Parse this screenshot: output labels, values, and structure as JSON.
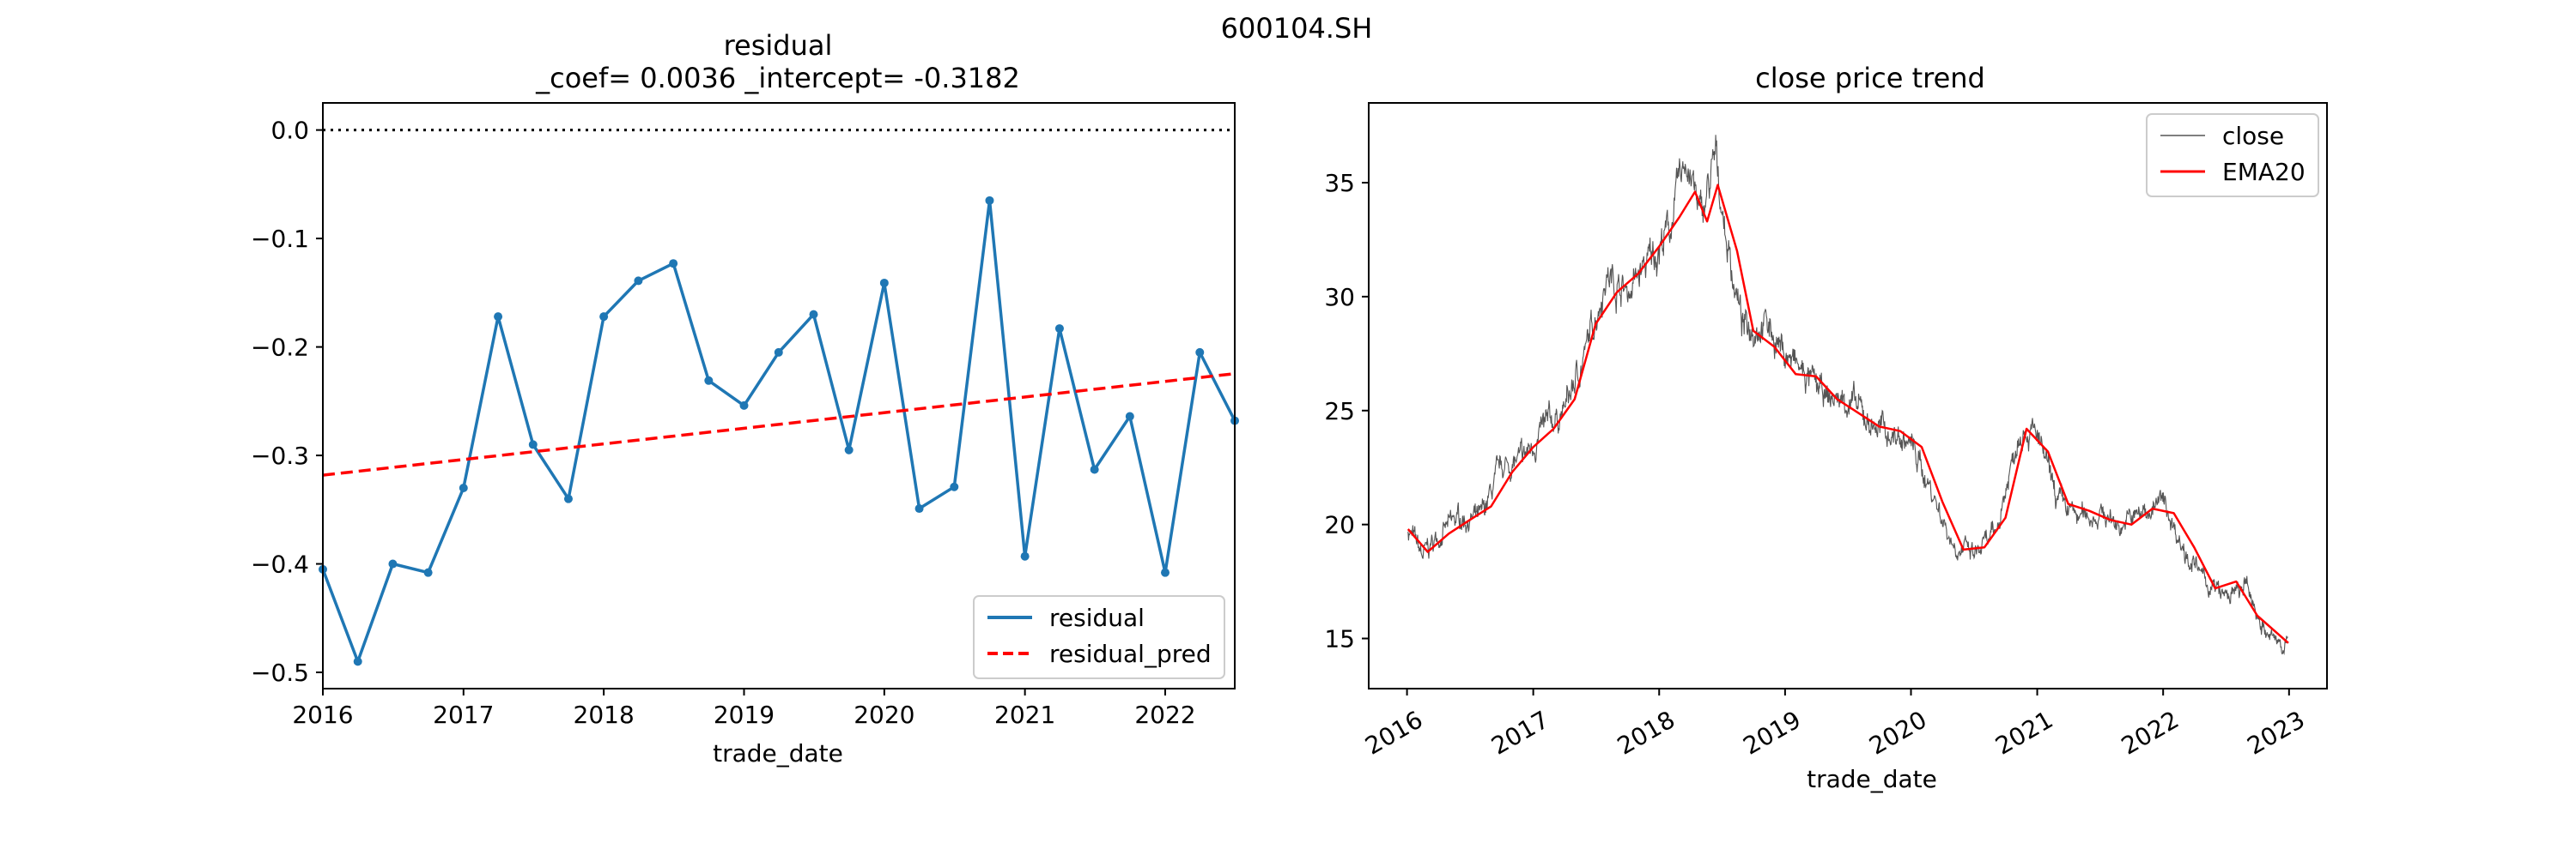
{
  "figure": {
    "suptitle": "600104.SH"
  },
  "chart_data": [
    {
      "type": "line",
      "title_line1": "residual",
      "title_line2": "_coef= 0.0036   _intercept= -0.3182",
      "xlabel": "trade_date",
      "ylabel": "",
      "x_tick_labels": [
        "2016",
        "2017",
        "2018",
        "2019",
        "2020",
        "2021",
        "2022"
      ],
      "y_tick_labels": [
        "0.0",
        "−0.1",
        "−0.2",
        "−0.3",
        "−0.4",
        "−0.5"
      ],
      "y_ticks": [
        0.0,
        -0.1,
        -0.2,
        -0.3,
        -0.4,
        -0.5
      ],
      "xlim": [
        "2016-01-01",
        "2022-07-01"
      ],
      "ylim": [
        -0.515,
        0.025
      ],
      "zero_line": 0.0,
      "legend_position": "lower right",
      "series": [
        {
          "name": "residual",
          "color": "#1f77b4",
          "style": "solid",
          "markers": true,
          "x": [
            "2016-01-01",
            "2016-04-01",
            "2016-07-01",
            "2016-10-01",
            "2017-01-01",
            "2017-04-01",
            "2017-07-01",
            "2017-10-01",
            "2018-01-01",
            "2018-04-01",
            "2018-07-01",
            "2018-10-01",
            "2019-01-01",
            "2019-04-01",
            "2019-07-01",
            "2019-10-01",
            "2020-01-01",
            "2020-04-01",
            "2020-07-01",
            "2020-10-01",
            "2021-01-01",
            "2021-04-01",
            "2021-07-01",
            "2021-10-01",
            "2022-01-01",
            "2022-04-01",
            "2022-07-01"
          ],
          "y": [
            -0.405,
            -0.49,
            -0.4,
            -0.408,
            -0.33,
            -0.172,
            -0.29,
            -0.34,
            -0.172,
            -0.139,
            -0.123,
            -0.231,
            -0.254,
            -0.205,
            -0.17,
            -0.295,
            -0.141,
            -0.349,
            -0.329,
            -0.065,
            -0.393,
            -0.183,
            -0.313,
            -0.264,
            -0.408,
            -0.205,
            -0.268
          ]
        },
        {
          "name": "residual_pred",
          "color": "#ff0000",
          "style": "dashed",
          "markers": false,
          "x": [
            "2016-01-01",
            "2022-07-01"
          ],
          "y": [
            -0.3182,
            -0.2246
          ]
        }
      ]
    },
    {
      "type": "line",
      "title": "close price trend",
      "xlabel": "trade_date",
      "ylabel": "",
      "x_tick_labels": [
        "2016",
        "2017",
        "2018",
        "2019",
        "2020",
        "2021",
        "2022",
        "2023"
      ],
      "y_tick_labels": [
        "15",
        "20",
        "25",
        "30",
        "35"
      ],
      "y_ticks": [
        15,
        20,
        25,
        30,
        35
      ],
      "xlim": [
        "2015-09-12",
        "2023-04-21"
      ],
      "ylim": [
        12.8,
        38.5
      ],
      "legend_position": "upper right",
      "series": [
        {
          "name": "close",
          "color": "#555555",
          "style": "solid",
          "thin": true,
          "noisy": true,
          "x": [
            "2016-01-04",
            "2016-02-15",
            "2016-04-01",
            "2016-06-01",
            "2016-08-01",
            "2016-10-01",
            "2016-12-01",
            "2017-02-01",
            "2017-04-01",
            "2017-06-01",
            "2017-08-01",
            "2017-10-01",
            "2017-12-01",
            "2018-02-01",
            "2018-03-20",
            "2018-05-01",
            "2018-06-15",
            "2018-07-15",
            "2018-09-01",
            "2018-11-01",
            "2019-01-01",
            "2019-03-01",
            "2019-05-01",
            "2019-07-01",
            "2019-09-01",
            "2019-11-01",
            "2020-01-01",
            "2020-03-01",
            "2020-05-01",
            "2020-07-01",
            "2020-09-01",
            "2020-11-15",
            "2021-01-01",
            "2021-03-01",
            "2021-05-01",
            "2021-07-01",
            "2021-09-01",
            "2021-11-01",
            "2022-01-01",
            "2022-03-01",
            "2022-05-01",
            "2022-07-01",
            "2022-09-01",
            "2022-11-01",
            "2022-12-30"
          ],
          "y": [
            19.8,
            18.6,
            19.5,
            20.3,
            20.2,
            22.5,
            22.8,
            24.2,
            25.0,
            27.5,
            31.0,
            30.2,
            31.5,
            33.0,
            36.2,
            33.4,
            36.0,
            32.5,
            28.6,
            29.0,
            27.5,
            26.5,
            25.5,
            25.5,
            24.5,
            24.0,
            23.5,
            21.5,
            19.2,
            18.6,
            19.5,
            24.5,
            23.8,
            21.0,
            20.3,
            20.5,
            20.0,
            20.5,
            21.0,
            19.0,
            17.5,
            16.8,
            17.2,
            15.0,
            14.8
          ]
        },
        {
          "name": "EMA20",
          "color": "#ff0000",
          "style": "solid",
          "x": [
            "2016-01-04",
            "2016-03-01",
            "2016-05-01",
            "2016-07-01",
            "2016-09-01",
            "2016-11-01",
            "2017-01-01",
            "2017-03-01",
            "2017-05-01",
            "2017-07-01",
            "2017-09-01",
            "2017-11-01",
            "2018-01-01",
            "2018-03-01",
            "2018-04-15",
            "2018-05-20",
            "2018-06-20",
            "2018-08-15",
            "2018-10-01",
            "2018-12-01",
            "2019-02-01",
            "2019-04-01",
            "2019-06-01",
            "2019-08-01",
            "2019-10-01",
            "2019-12-01",
            "2020-02-01",
            "2020-04-01",
            "2020-06-01",
            "2020-08-01",
            "2020-10-01",
            "2020-12-01",
            "2021-02-01",
            "2021-04-01",
            "2021-06-01",
            "2021-08-01",
            "2021-10-01",
            "2021-12-01",
            "2022-02-01",
            "2022-04-01",
            "2022-06-01",
            "2022-08-01",
            "2022-10-01",
            "2022-12-30"
          ],
          "y": [
            19.8,
            18.8,
            19.6,
            20.2,
            20.8,
            22.3,
            23.4,
            24.2,
            25.5,
            28.8,
            30.2,
            31.0,
            32.2,
            33.5,
            34.6,
            33.3,
            34.9,
            32.0,
            28.5,
            27.8,
            26.6,
            26.5,
            25.5,
            24.9,
            24.3,
            24.1,
            23.4,
            21.0,
            18.9,
            19.0,
            20.3,
            24.2,
            23.2,
            20.9,
            20.6,
            20.2,
            20.0,
            20.7,
            20.5,
            19.0,
            17.2,
            17.5,
            16.0,
            14.8
          ]
        }
      ]
    }
  ]
}
